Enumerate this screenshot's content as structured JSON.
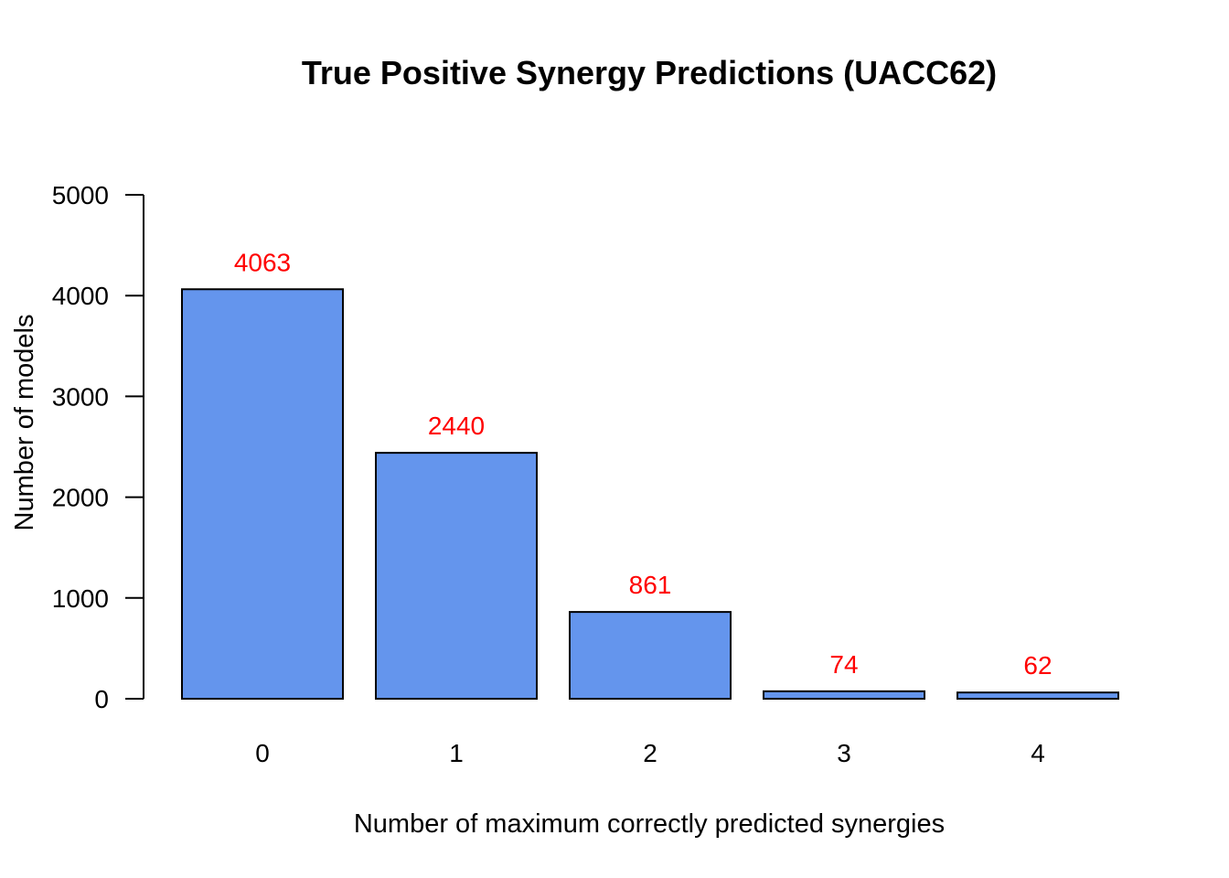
{
  "chart_data": {
    "type": "bar",
    "title": "True Positive Synergy Predictions (UACC62)",
    "xlabel": "Number of maximum correctly predicted synergies",
    "ylabel": "Number of models",
    "categories": [
      "0",
      "1",
      "2",
      "3",
      "4"
    ],
    "values": [
      4063,
      2440,
      861,
      74,
      62
    ],
    "data_labels": [
      "4063",
      "2440",
      "861",
      "74",
      "62"
    ],
    "ylim": [
      0,
      5000
    ],
    "yticks": [
      0,
      1000,
      2000,
      3000,
      4000,
      5000
    ],
    "ytick_labels": [
      "0",
      "1000",
      "2000",
      "3000",
      "4000",
      "5000"
    ],
    "grid": false,
    "legend": "none",
    "colors": {
      "bar_fill": "#6495ED",
      "bar_stroke": "#000000",
      "data_label": "#FF0000"
    }
  }
}
